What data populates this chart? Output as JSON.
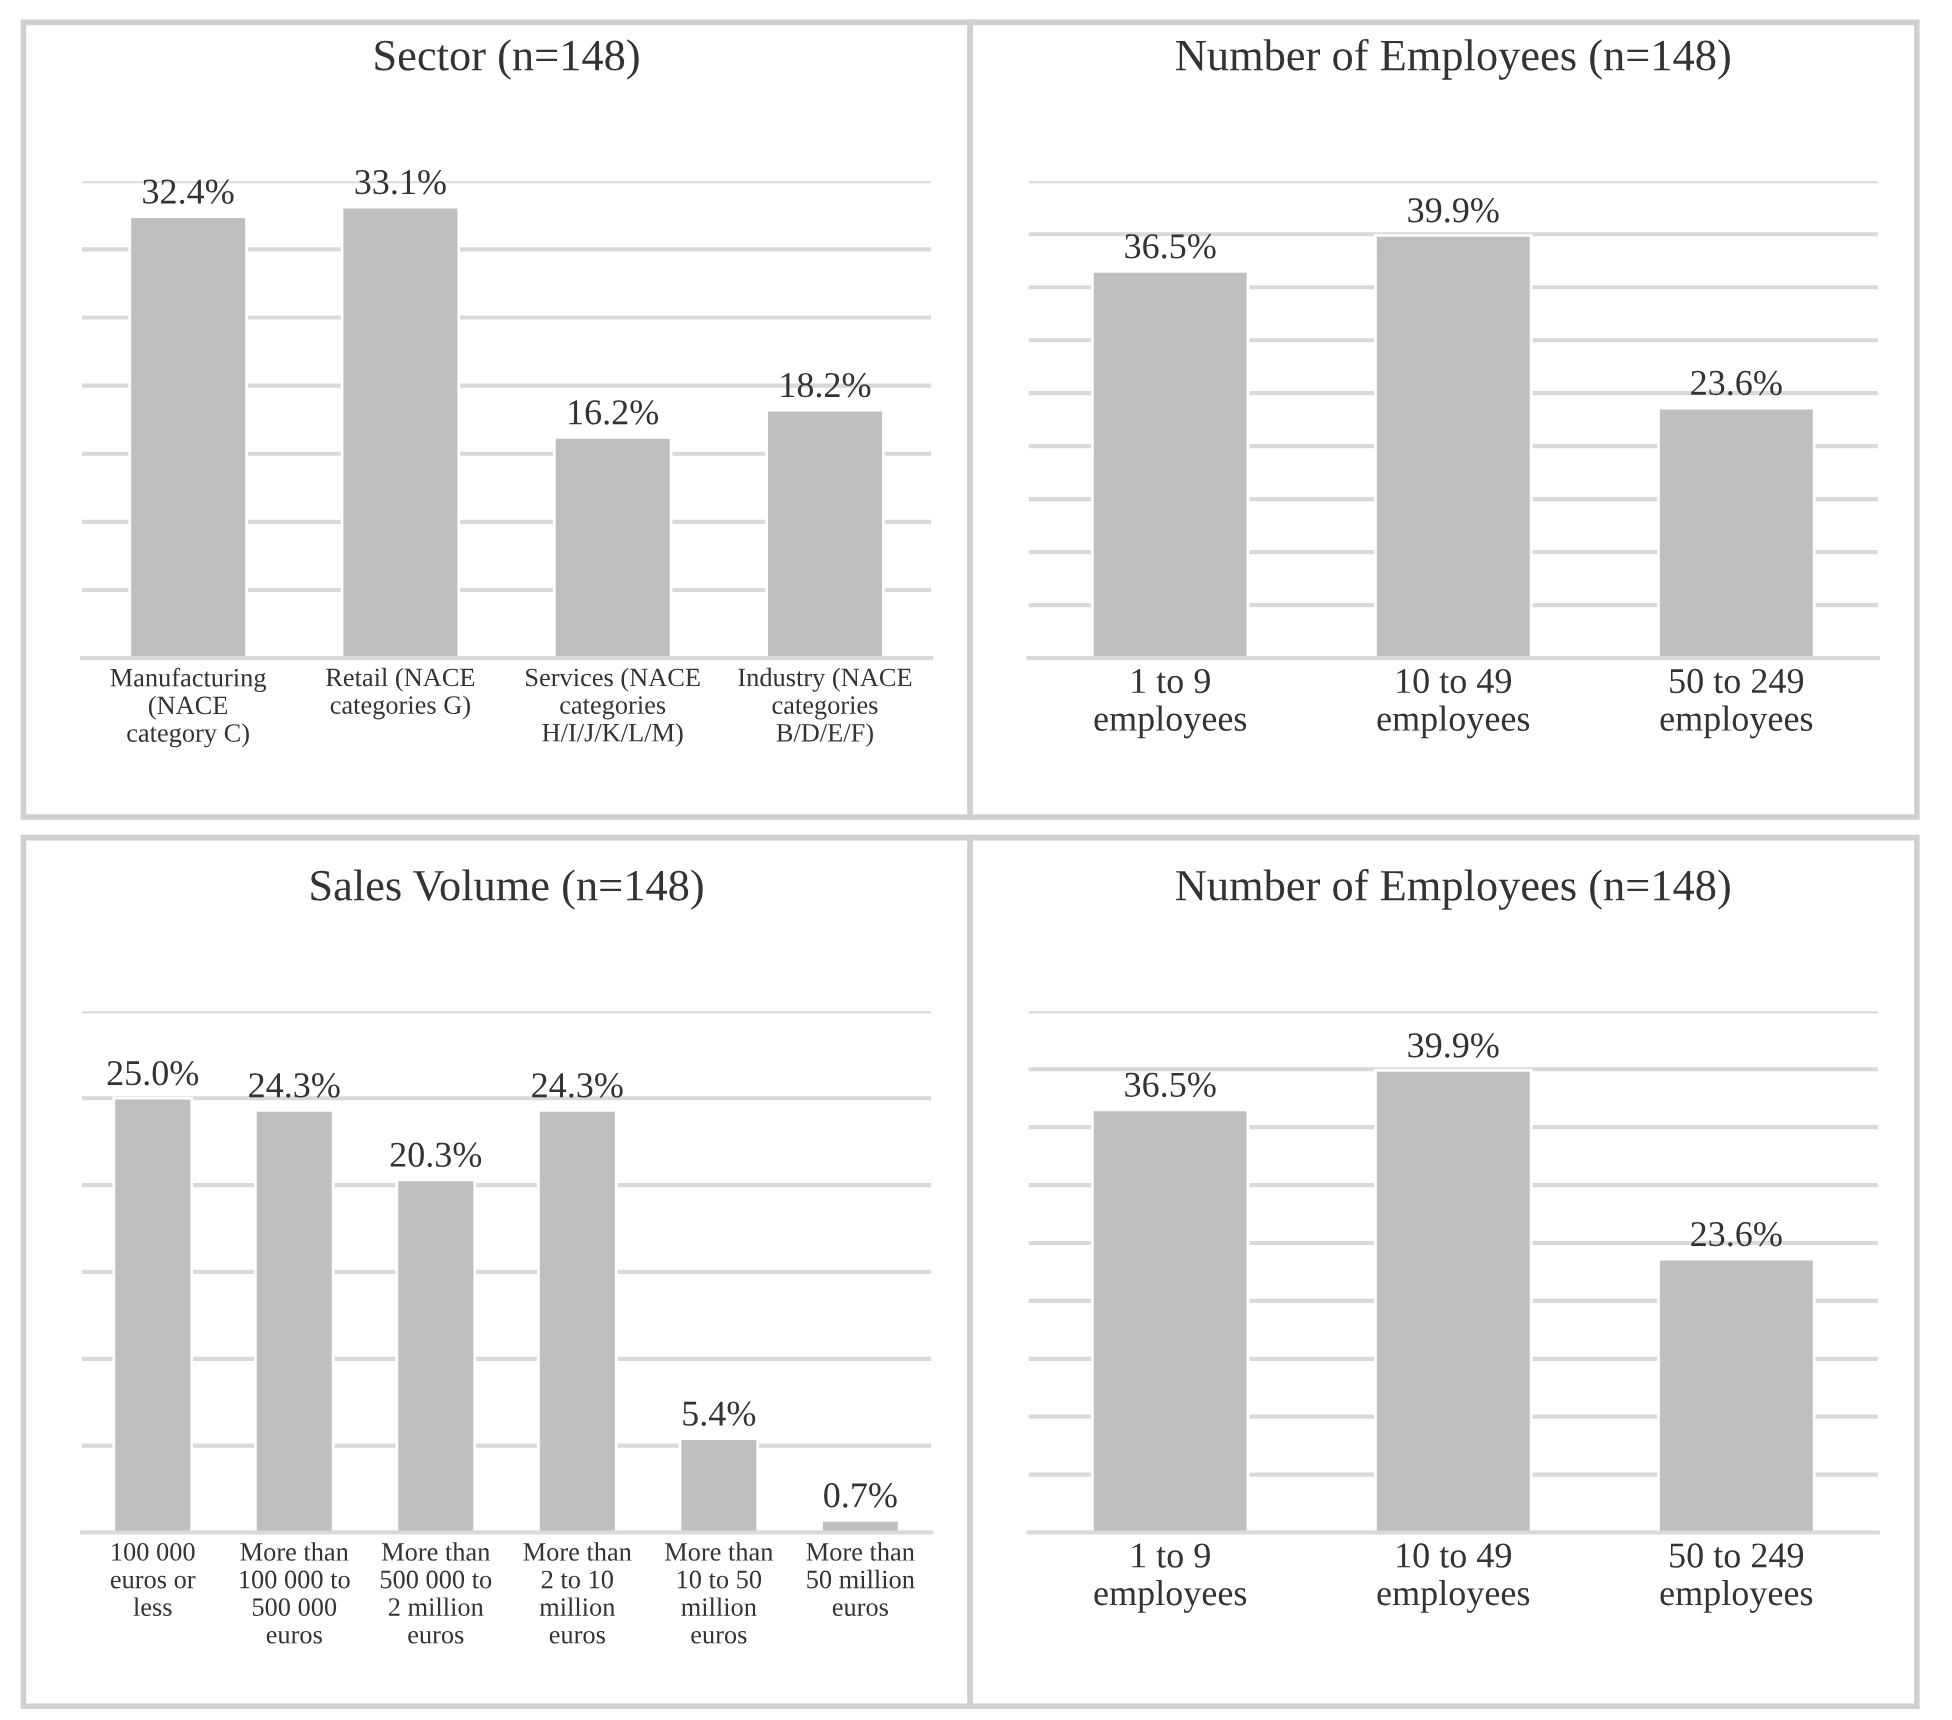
{
  "chart_data": [
    {
      "type": "bar",
      "title": "Sector (n=148)",
      "categories": [
        "Manufacturing\n(NACE\ncategory C)",
        "Retail (NACE\ncategories G)",
        "Services (NACE\ncategories\nH/I/J/K/L/M)",
        "Industry (NACE\ncategories\nB/D/E/F)"
      ],
      "values": [
        32.4,
        33.1,
        16.2,
        18.2
      ],
      "value_labels": [
        "32.4%",
        "33.1%",
        "16.2%",
        "18.2%"
      ],
      "color": "#bfbfbf",
      "ylim": [
        0,
        35
      ],
      "yticks": [
        {
          "value": 0,
          "label": null
        },
        {
          "value": 5,
          "label": null
        },
        {
          "value": 10,
          "label": null
        },
        {
          "value": 15,
          "label": null
        },
        {
          "value": 20,
          "label": null
        },
        {
          "value": 25,
          "label": null
        },
        {
          "value": 30,
          "label": null
        },
        {
          "value": 35,
          "label": null
        }
      ],
      "grid": "y",
      "tick_labels": "x"
    },
    {
      "type": "bar",
      "title": "Number of Employees (n=148)",
      "categories": [
        "1 to 9\nemployees",
        "10 to 49\nemployees",
        "50 to 249\nemployees"
      ],
      "values": [
        36.5,
        39.9,
        23.6
      ],
      "value_labels": [
        "36.5%",
        "39.9%",
        "23.6%"
      ],
      "color": "#bfbfbf",
      "ylim": [
        0,
        45
      ],
      "yticks": [
        {
          "value": 0,
          "label": null
        },
        {
          "value": 5,
          "label": null
        },
        {
          "value": 10,
          "label": null
        },
        {
          "value": 15,
          "label": null
        },
        {
          "value": 20,
          "label": null
        },
        {
          "value": 25,
          "label": null
        },
        {
          "value": 30,
          "label": null
        },
        {
          "value": 35,
          "label": null
        },
        {
          "value": 40,
          "label": null
        },
        {
          "value": 45,
          "label": null
        }
      ],
      "grid": "y",
      "tick_labels": "x"
    },
    {
      "type": "bar",
      "title": "Sales Volume (n=148)",
      "categories": [
        "100 000\neuros or\nless",
        "More than\n100 000 to\n500 000\neuros",
        "More than\n500 000 to\n2 million\neuros",
        "More than\n2 to 10\nmillion\neuros",
        "More than\n10 to 50\nmillion\neuros",
        "More than\n50 million\neuros"
      ],
      "values": [
        25.0,
        24.3,
        20.3,
        24.3,
        5.4,
        0.7
      ],
      "value_labels": [
        "25.0%",
        "24.3%",
        "20.3%",
        "24.3%",
        "5.4%",
        "0.7%"
      ],
      "color": "#bfbfbf",
      "ylim": [
        0,
        30
      ],
      "yticks": [
        {
          "value": 0,
          "label": null
        },
        {
          "value": 5,
          "label": null
        },
        {
          "value": 10,
          "label": null
        },
        {
          "value": 15,
          "label": null
        },
        {
          "value": 20,
          "label": null
        },
        {
          "value": 25,
          "label": null
        },
        {
          "value": 30,
          "label": null
        }
      ],
      "grid": "y",
      "tick_labels": "x"
    },
    {
      "type": "bar",
      "title": "Number of Employees (n=148)",
      "categories": [
        "1 to 9\nemployees",
        "10 to 49\nemployees",
        "50 to 249\nemployees"
      ],
      "values": [
        36.5,
        39.9,
        23.6
      ],
      "value_labels": [
        "36.5%",
        "39.9%",
        "23.6%"
      ],
      "color": "#bfbfbf",
      "ylim": [
        0,
        45
      ],
      "yticks": [
        {
          "value": 0,
          "label": null
        },
        {
          "value": 5,
          "label": null
        },
        {
          "value": 10,
          "label": null
        },
        {
          "value": 15,
          "label": null
        },
        {
          "value": 20,
          "label": null
        },
        {
          "value": 25,
          "label": null
        },
        {
          "value": 30,
          "label": null
        },
        {
          "value": 35,
          "label": null
        },
        {
          "value": 40,
          "label": null
        },
        {
          "value": 45,
          "label": null
        }
      ],
      "grid": "y",
      "tick_labels": "x"
    }
  ]
}
